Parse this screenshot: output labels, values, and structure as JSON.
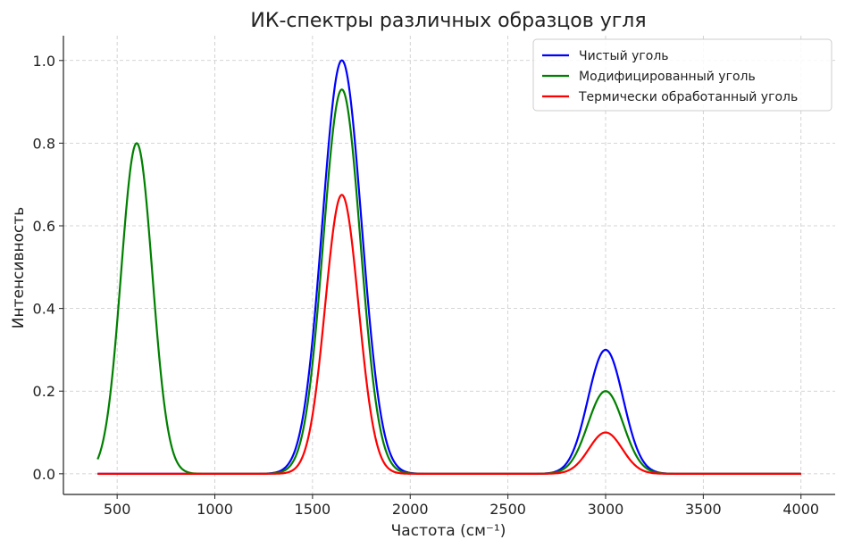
{
  "chart_data": {
    "type": "line",
    "title": "ИК-спектры различных образцов угля",
    "xlabel": "Частота (см⁻¹)",
    "ylabel": "Интенсивность",
    "xlim": [
      225,
      4175
    ],
    "ylim": [
      -0.05,
      1.06
    ],
    "x_ticks": [
      500,
      1000,
      1500,
      2000,
      2500,
      3000,
      3500,
      4000
    ],
    "y_ticks": [
      0.0,
      0.2,
      0.4,
      0.6,
      0.8,
      1.0
    ],
    "x_tick_labels": [
      "500",
      "1000",
      "1500",
      "2000",
      "2500",
      "3000",
      "3500",
      "4000"
    ],
    "y_tick_labels": [
      "0.0",
      "0.2",
      "0.4",
      "0.6",
      "0.8",
      "1.0"
    ],
    "grid": true,
    "legend_position": "top-right",
    "x_range": [
      400,
      4000
    ],
    "series": [
      {
        "name": "Чистый уголь",
        "color": "#0000ff",
        "peaks": [
          {
            "center": 1650,
            "height": 1.0,
            "width": 100
          },
          {
            "center": 3000,
            "height": 0.3,
            "width": 90
          },
          {
            "center": 1800,
            "height": 0.01,
            "width": 60
          }
        ]
      },
      {
        "name": "Модифицированный уголь",
        "color": "#008000",
        "peaks": [
          {
            "center": 600,
            "height": 0.8,
            "width": 80
          },
          {
            "center": 1650,
            "height": 0.93,
            "width": 95
          },
          {
            "center": 3000,
            "height": 0.2,
            "width": 90
          }
        ]
      },
      {
        "name": "Термически обработанный уголь",
        "color": "#ff0000",
        "peaks": [
          {
            "center": 1650,
            "height": 0.675,
            "width": 85
          },
          {
            "center": 3000,
            "height": 0.1,
            "width": 85
          }
        ]
      }
    ]
  }
}
